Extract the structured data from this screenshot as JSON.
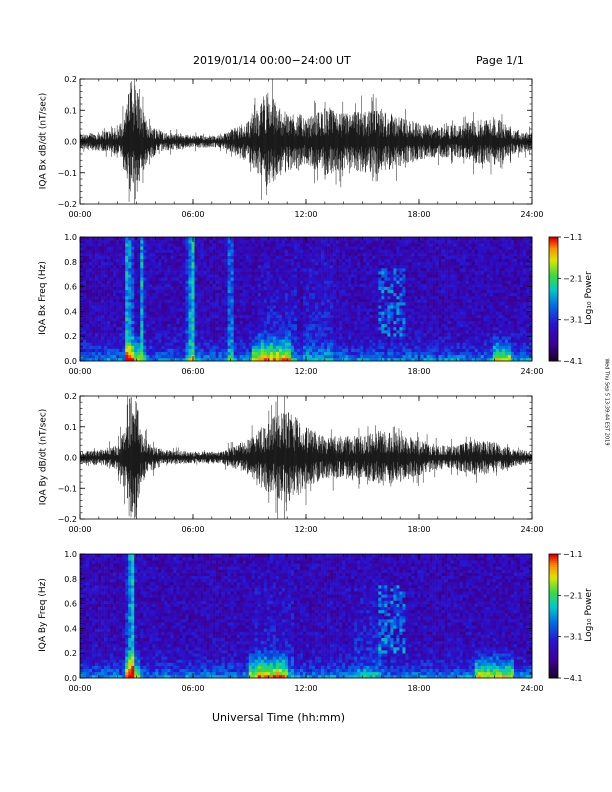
{
  "header": {
    "date_range": "2019/01/14  00:00−24:00 UT",
    "page": "Page 1/1"
  },
  "footer": {
    "xlabel": "Universal Time (hh:mm)",
    "stamp": "Wed Thu Sep 5 13:39:44 EST 2019"
  },
  "chart_data": [
    {
      "type": "line",
      "ylabel": "IQA Bx dB/dt (nT/sec)",
      "xlim": [
        0,
        24
      ],
      "ylim": [
        -0.2,
        0.2
      ],
      "x_ticks": [
        "00:00",
        "06:00",
        "12:00",
        "18:00",
        "24:00"
      ],
      "y_ticks": [
        "−0.2",
        "−0.1",
        "0.0",
        "0.1",
        "0.2"
      ],
      "envelope": {
        "hours": [
          0,
          1,
          2,
          2.5,
          2.6,
          2.8,
          3.0,
          3.2,
          3.6,
          4.5,
          6,
          7.5,
          9,
          9.5,
          10,
          10.5,
          11,
          11.5,
          12,
          13,
          14,
          15,
          16,
          17,
          18,
          19,
          20,
          21,
          22,
          23,
          24
        ],
        "amplitude": [
          0.025,
          0.03,
          0.04,
          0.12,
          0.2,
          0.2,
          0.2,
          0.12,
          0.06,
          0.03,
          0.02,
          0.02,
          0.07,
          0.11,
          0.16,
          0.12,
          0.09,
          0.1,
          0.07,
          0.11,
          0.09,
          0.1,
          0.1,
          0.08,
          0.06,
          0.05,
          0.05,
          0.07,
          0.08,
          0.04,
          0.03
        ]
      }
    },
    {
      "type": "heatmap",
      "ylabel": "IQA Bx Freq (Hz)",
      "xlim": [
        0,
        24
      ],
      "ylim": [
        0,
        1
      ],
      "x_ticks": [
        "00:00",
        "06:00",
        "12:00",
        "18:00",
        "24:00"
      ],
      "y_ticks": [
        "0.0",
        "0.2",
        "0.4",
        "0.6",
        "0.8",
        "1.0"
      ],
      "colorbar": {
        "label": "Log₁₀ Power",
        "range": [
          -4.1,
          -1.1
        ],
        "ticks": [
          "−1.1",
          "−2.1",
          "−3.1",
          "−4.1"
        ]
      },
      "features": {
        "vertical_bands_hours": [
          2.5,
          2.7,
          3.3,
          5.8,
          6.0,
          8.0
        ],
        "broadband_hours": [
          [
            9.5,
            11.5
          ],
          [
            11.8,
            13.5
          ]
        ],
        "high_freq_patch_hours": [
          15.8,
          17.2
        ],
        "low_freq_enhancements_hours": [
          [
            2.4,
            3.2
          ],
          [
            9.2,
            11.2
          ],
          [
            22.0,
            22.8
          ]
        ]
      }
    },
    {
      "type": "line",
      "ylabel": "IQA By dB/dt (nT/sec)",
      "xlim": [
        0,
        24
      ],
      "ylim": [
        -0.2,
        0.2
      ],
      "x_ticks": [
        "00:00",
        "06:00",
        "12:00",
        "18:00",
        "24:00"
      ],
      "y_ticks": [
        "−0.2",
        "−0.1",
        "0.0",
        "0.1",
        "0.2"
      ],
      "envelope": {
        "hours": [
          0,
          1,
          2,
          2.5,
          2.6,
          2.8,
          3.0,
          3.2,
          3.6,
          4.5,
          6,
          7.5,
          9,
          9.5,
          10,
          10.5,
          11,
          11.5,
          12,
          13,
          14,
          15,
          16,
          17,
          18,
          19,
          20,
          21,
          22,
          23,
          24
        ],
        "amplitude": [
          0.02,
          0.025,
          0.04,
          0.12,
          0.2,
          0.2,
          0.2,
          0.1,
          0.05,
          0.025,
          0.02,
          0.02,
          0.06,
          0.09,
          0.12,
          0.14,
          0.15,
          0.13,
          0.1,
          0.07,
          0.07,
          0.07,
          0.09,
          0.08,
          0.06,
          0.04,
          0.04,
          0.06,
          0.05,
          0.03,
          0.02
        ]
      }
    },
    {
      "type": "heatmap",
      "ylabel": "IQA By Freq (Hz)",
      "xlim": [
        0,
        24
      ],
      "ylim": [
        0,
        1
      ],
      "x_ticks": [
        "00:00",
        "06:00",
        "12:00",
        "18:00",
        "24:00"
      ],
      "y_ticks": [
        "0.0",
        "0.2",
        "0.4",
        "0.6",
        "0.8",
        "1.0"
      ],
      "colorbar": {
        "label": "Log₁₀ Power",
        "range": [
          -4.1,
          -1.1
        ],
        "ticks": [
          "−1.1",
          "−2.1",
          "−3.1",
          "−4.1"
        ]
      },
      "features": {
        "vertical_bands_hours": [
          2.6,
          2.8
        ],
        "broadband_hours": [
          [
            9.3,
            11.3
          ],
          [
            14.5,
            16.0
          ]
        ],
        "high_freq_patch_hours": [
          15.8,
          17.2
        ],
        "low_freq_enhancements_hours": [
          [
            2.4,
            3.2
          ],
          [
            9.0,
            11.0
          ],
          [
            21.0,
            23.0
          ]
        ]
      }
    }
  ],
  "colors": {
    "trace": "#000000",
    "frame": "#000000",
    "background": "#ffffff"
  }
}
